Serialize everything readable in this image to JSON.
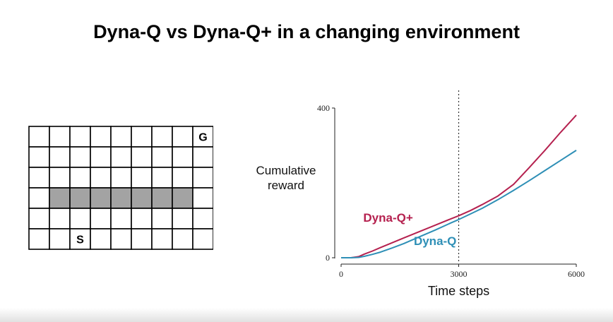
{
  "slide": {
    "title": "Dyna-Q vs Dyna-Q+ in a changing environment"
  },
  "gridworld": {
    "rows": 6,
    "cols": 9,
    "start_label": "S",
    "goal_label": "G",
    "start_cell": [
      5,
      2
    ],
    "goal_cell": [
      0,
      8
    ],
    "wall_row": 3,
    "wall_cols": [
      1,
      2,
      3,
      4,
      5,
      6,
      7
    ],
    "wall_color": "#a3a3a3"
  },
  "chart_data": {
    "type": "line",
    "title": "",
    "xlabel": "Time steps",
    "ylabel": "Cumulative reward",
    "ylabel_lines": [
      "Cumulative",
      "reward"
    ],
    "xlim": [
      0,
      6000
    ],
    "ylim": [
      0,
      400
    ],
    "xticks": [
      0,
      3000,
      6000
    ],
    "yticks": [
      0,
      400
    ],
    "xtick_labels": [
      "0",
      "3000",
      "6000"
    ],
    "ytick_labels": [
      "0",
      "400"
    ],
    "vline_x": 3000,
    "grid": false,
    "series": [
      {
        "name": "Dyna-Q+",
        "color": "#b5214f",
        "x": [
          0,
          250,
          450,
          600,
          800,
          1000,
          1300,
          1600,
          2000,
          2400,
          2800,
          3000,
          3300,
          3600,
          4000,
          4400,
          4800,
          5200,
          5600,
          6000
        ],
        "y": [
          0,
          0,
          3,
          10,
          18,
          27,
          40,
          53,
          70,
          87,
          104,
          112,
          126,
          142,
          165,
          196,
          241,
          287,
          335,
          381
        ]
      },
      {
        "name": "Dyna-Q",
        "color": "#2e8fb6",
        "x": [
          0,
          250,
          450,
          600,
          800,
          1000,
          1300,
          1600,
          2000,
          2400,
          2800,
          3000,
          3300,
          3600,
          4000,
          4400,
          4800,
          5200,
          5600,
          6000
        ],
        "y": [
          0,
          0,
          1,
          4,
          9,
          15,
          26,
          38,
          56,
          74,
          93,
          102,
          117,
          132,
          155,
          180,
          206,
          233,
          260,
          287
        ]
      }
    ],
    "annotations": [
      {
        "text": "Dyna-Q+",
        "series": "Dyna-Q+",
        "x": 1200,
        "y": 96
      },
      {
        "text": "Dyna-Q",
        "series": "Dyna-Q",
        "x": 2400,
        "y": 34
      }
    ]
  }
}
